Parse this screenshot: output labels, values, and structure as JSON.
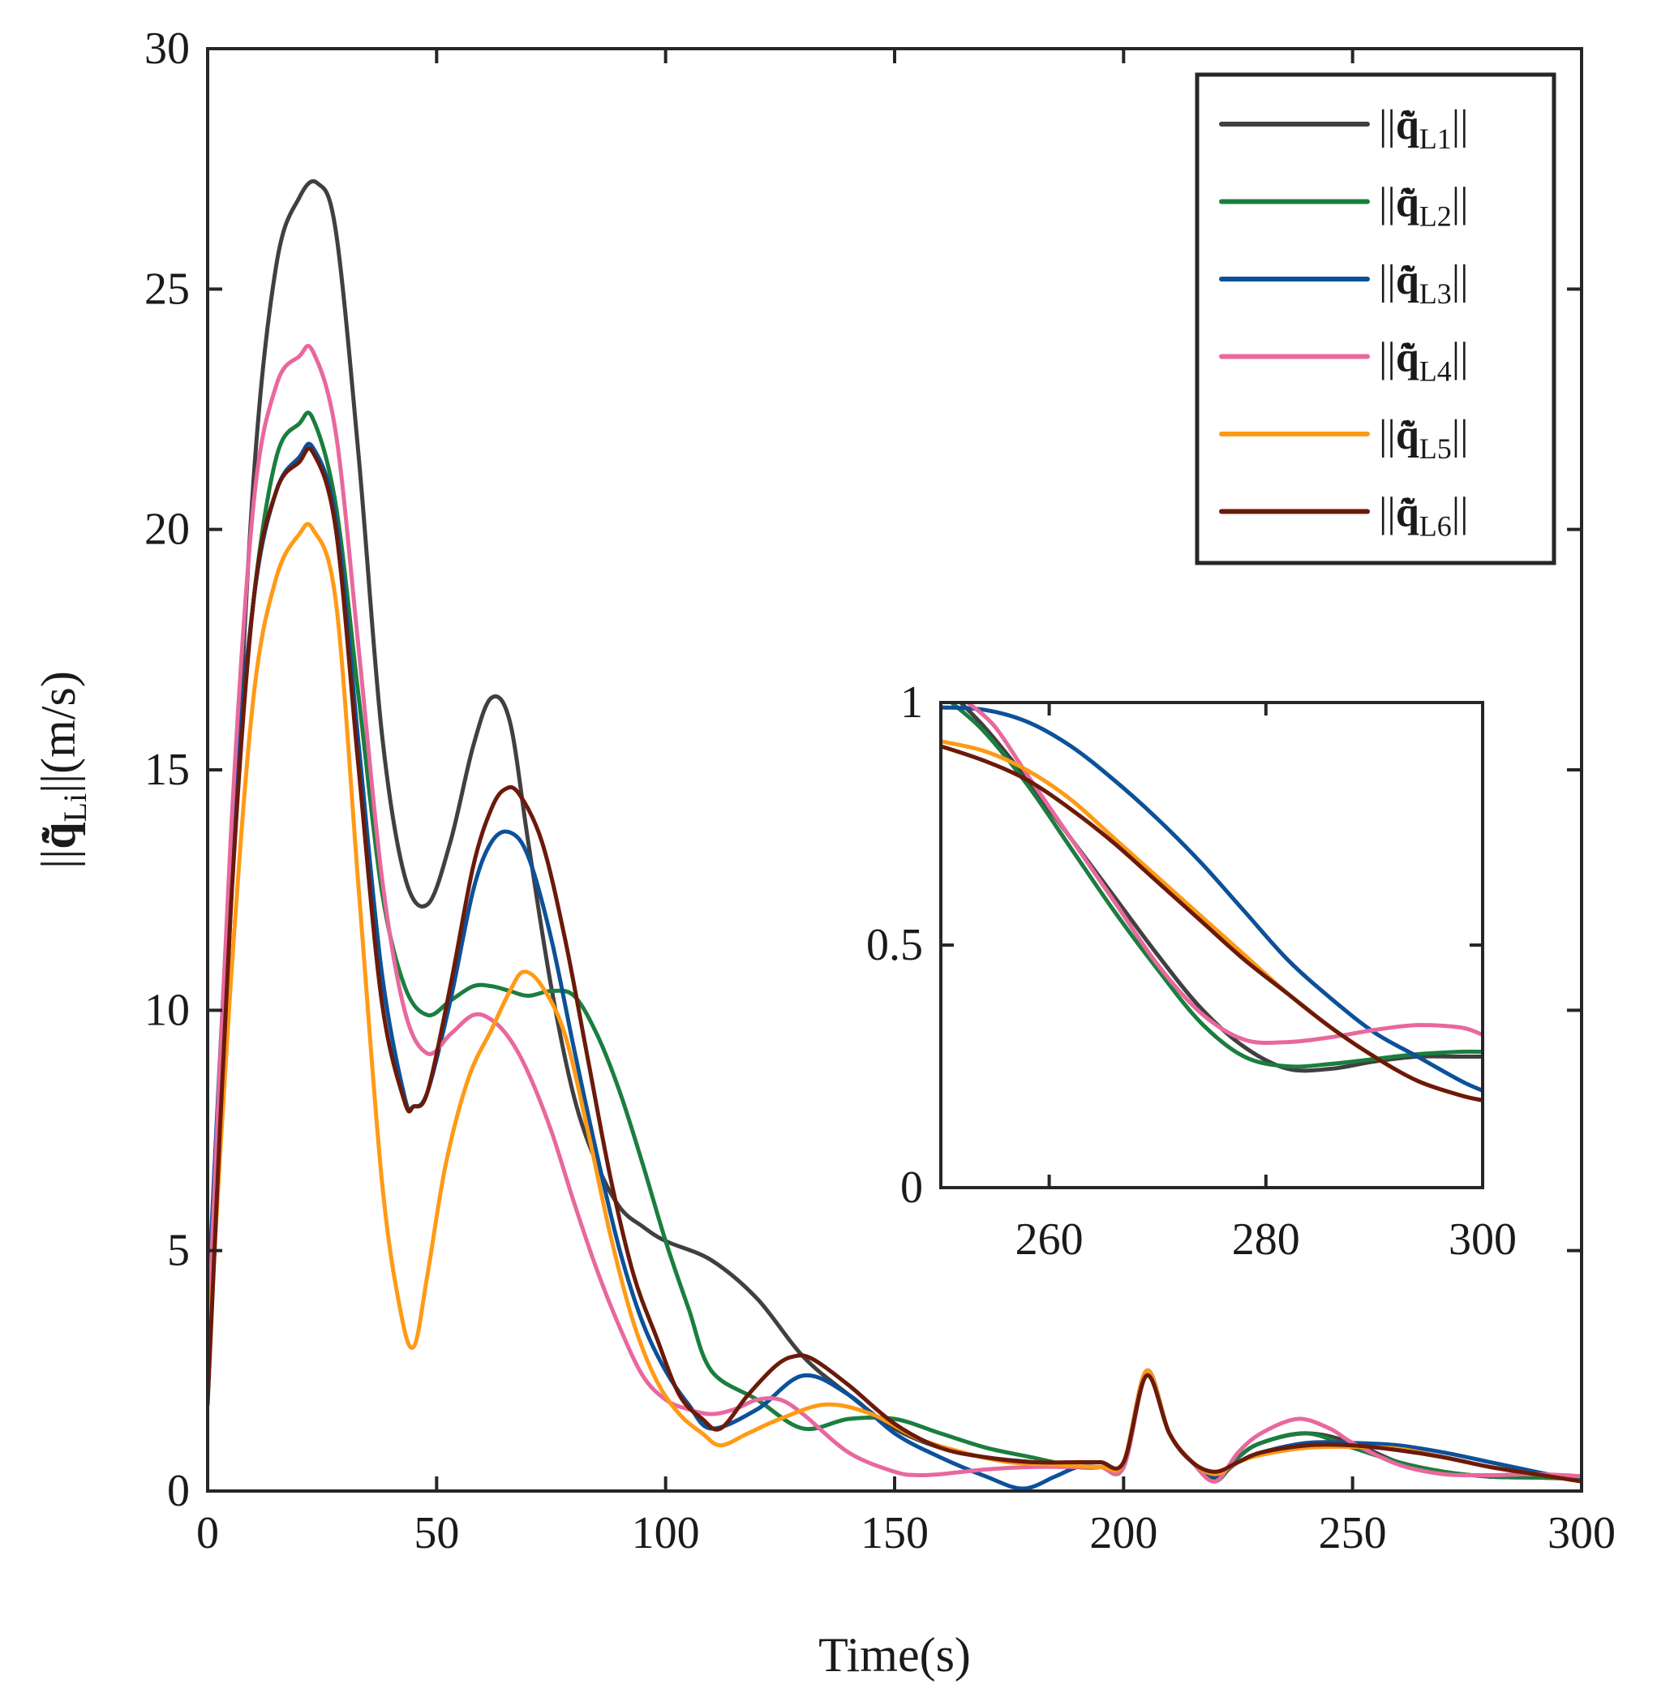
{
  "chart_data": [
    {
      "type": "line",
      "role": "main",
      "xlabel": "Time(s)",
      "ylabel": "||q̃̇_Li||(m/s)",
      "ylabel_parts": {
        "pre": "||",
        "symbol": "q̃̇",
        "sub": "Li",
        "post": "||(m/s)"
      },
      "xlim": [
        0,
        300
      ],
      "ylim": [
        0,
        30
      ],
      "xticks": [
        0,
        50,
        100,
        150,
        200,
        250,
        300
      ],
      "yticks": [
        0,
        5,
        10,
        15,
        20,
        25,
        30
      ],
      "grid": false,
      "legend_position": "top-right",
      "series": [
        {
          "name": "||q̃̇L1||",
          "label_pre": "||",
          "label_symbol": "q̃̇",
          "label_sub": "L1",
          "label_post": "||",
          "color": "#404040",
          "x": [
            0,
            5,
            10,
            15,
            20,
            24,
            28,
            33,
            38,
            43,
            48,
            53,
            58,
            62,
            66,
            70,
            75,
            80,
            85,
            90,
            95,
            100,
            110,
            120,
            130,
            140,
            150,
            160,
            170,
            180,
            190,
            195,
            200,
            205,
            210,
            215,
            220,
            225,
            230,
            240,
            250,
            260,
            270,
            280,
            290,
            300
          ],
          "y": [
            2.0,
            12.0,
            21.0,
            25.5,
            26.9,
            27.2,
            26.2,
            21.5,
            15.8,
            12.8,
            12.2,
            13.5,
            15.5,
            16.5,
            16.0,
            13.5,
            10.5,
            8.2,
            6.8,
            5.9,
            5.5,
            5.2,
            4.8,
            4.0,
            2.8,
            2.0,
            1.3,
            0.9,
            0.7,
            0.6,
            0.5,
            0.5,
            0.6,
            2.5,
            1.2,
            0.6,
            0.25,
            0.7,
            1.0,
            1.2,
            1.0,
            0.6,
            0.4,
            0.3,
            0.28,
            0.25
          ]
        },
        {
          "name": "||q̃̇L2||",
          "label_pre": "||",
          "label_symbol": "q̃̇",
          "label_sub": "L2",
          "label_post": "||",
          "color": "#1b7e3e",
          "x": [
            0,
            5,
            10,
            15,
            20,
            23,
            28,
            33,
            38,
            43,
            48,
            53,
            58,
            62,
            66,
            70,
            75,
            80,
            85,
            90,
            95,
            100,
            105,
            110,
            120,
            130,
            140,
            150,
            160,
            170,
            180,
            190,
            195,
            200,
            205,
            210,
            215,
            220,
            225,
            230,
            240,
            250,
            260,
            270,
            280,
            290,
            300
          ],
          "y": [
            3.5,
            13.0,
            18.5,
            21.5,
            22.2,
            22.3,
            20.5,
            16.5,
            12.5,
            10.5,
            9.9,
            10.2,
            10.5,
            10.5,
            10.4,
            10.3,
            10.4,
            10.3,
            9.5,
            8.3,
            6.8,
            5.2,
            3.8,
            2.5,
            1.9,
            1.3,
            1.5,
            1.5,
            1.2,
            0.9,
            0.7,
            0.5,
            0.5,
            0.5,
            2.4,
            1.2,
            0.6,
            0.2,
            0.7,
            1.0,
            1.2,
            0.9,
            0.6,
            0.4,
            0.3,
            0.28,
            0.27
          ]
        },
        {
          "name": "||q̃̇L3||",
          "label_pre": "||",
          "label_symbol": "q̃̇",
          "label_sub": "L3",
          "label_post": "||",
          "color": "#0c5199",
          "x": [
            0,
            5,
            10,
            15,
            20,
            23,
            28,
            33,
            38,
            43,
            45,
            48,
            53,
            58,
            62,
            66,
            70,
            75,
            80,
            85,
            90,
            95,
            100,
            105,
            110,
            120,
            130,
            140,
            150,
            160,
            170,
            178,
            185,
            190,
            195,
            200,
            205,
            210,
            215,
            220,
            225,
            230,
            240,
            250,
            260,
            270,
            280,
            290,
            300
          ],
          "y": [
            3.8,
            13.0,
            18.5,
            20.8,
            21.5,
            21.7,
            20.2,
            15.5,
            10.8,
            8.2,
            8.0,
            8.3,
            10.2,
            12.5,
            13.5,
            13.7,
            13.2,
            11.5,
            9.2,
            7.0,
            5.0,
            3.5,
            2.5,
            1.8,
            1.3,
            1.7,
            2.4,
            2.0,
            1.2,
            0.7,
            0.3,
            0.05,
            0.3,
            0.5,
            0.5,
            0.5,
            2.5,
            1.2,
            0.6,
            0.3,
            0.6,
            0.8,
            1.0,
            1.0,
            0.95,
            0.8,
            0.6,
            0.4,
            0.2
          ]
        },
        {
          "name": "||q̃̇L4||",
          "label_pre": "||",
          "label_symbol": "q̃̇",
          "label_sub": "L4",
          "label_post": "||",
          "color": "#e8689e",
          "x": [
            0,
            5,
            10,
            15,
            20,
            23,
            28,
            33,
            38,
            43,
            48,
            53,
            58,
            62,
            66,
            70,
            75,
            80,
            85,
            90,
            95,
            100,
            105,
            110,
            115,
            120,
            125,
            130,
            140,
            150,
            155,
            160,
            170,
            180,
            190,
            195,
            200,
            205,
            210,
            215,
            220,
            225,
            230,
            238,
            245,
            250,
            260,
            270,
            280,
            290,
            300
          ],
          "y": [
            3.0,
            13.5,
            20.5,
            23.0,
            23.6,
            23.7,
            22.0,
            17.5,
            12.8,
            10.0,
            9.1,
            9.5,
            9.9,
            9.8,
            9.4,
            8.7,
            7.5,
            6.0,
            4.6,
            3.4,
            2.4,
            1.9,
            1.7,
            1.6,
            1.7,
            1.9,
            1.9,
            1.6,
            0.8,
            0.4,
            0.33,
            0.35,
            0.45,
            0.5,
            0.5,
            0.5,
            0.5,
            2.4,
            1.2,
            0.6,
            0.2,
            0.8,
            1.2,
            1.5,
            1.3,
            1.0,
            0.55,
            0.35,
            0.33,
            0.35,
            0.31
          ]
        },
        {
          "name": "||q̃̇L5||",
          "label_pre": "||",
          "label_symbol": "q̃̇",
          "label_sub": "L5",
          "label_post": "||",
          "color": "#ff9a16",
          "x": [
            0,
            5,
            10,
            15,
            20,
            23,
            28,
            33,
            38,
            42,
            45,
            48,
            52,
            57,
            62,
            66,
            69,
            73,
            78,
            83,
            88,
            93,
            98,
            103,
            108,
            112,
            118,
            125,
            135,
            145,
            155,
            165,
            175,
            185,
            195,
            200,
            205,
            210,
            215,
            220,
            225,
            230,
            240,
            250,
            260,
            270,
            280,
            290,
            300
          ],
          "y": [
            2.5,
            10.5,
            16.5,
            19.0,
            19.9,
            20.0,
            18.5,
            12.5,
            6.5,
            3.8,
            3.0,
            4.5,
            6.8,
            8.6,
            9.6,
            10.4,
            10.8,
            10.5,
            9.5,
            7.5,
            5.3,
            3.5,
            2.3,
            1.6,
            1.2,
            0.95,
            1.2,
            1.5,
            1.8,
            1.6,
            1.1,
            0.8,
            0.6,
            0.55,
            0.5,
            0.6,
            2.5,
            1.2,
            0.6,
            0.35,
            0.6,
            0.75,
            0.9,
            0.92,
            0.88,
            0.7,
            0.5,
            0.35,
            0.2
          ]
        },
        {
          "name": "||q̃̇L6||",
          "label_pre": "||",
          "label_symbol": "q̃̇",
          "label_sub": "L6",
          "label_post": "||",
          "color": "#6b1a0a",
          "x": [
            0,
            5,
            10,
            15,
            20,
            23,
            28,
            33,
            38,
            43,
            45,
            48,
            53,
            58,
            62,
            65,
            68,
            73,
            78,
            83,
            88,
            93,
            98,
            103,
            108,
            112,
            118,
            124,
            128,
            132,
            140,
            150,
            160,
            170,
            180,
            190,
            195,
            200,
            205,
            210,
            215,
            220,
            225,
            230,
            240,
            250,
            260,
            270,
            280,
            290,
            300
          ],
          "y": [
            1.8,
            12.0,
            18.5,
            20.8,
            21.4,
            21.6,
            20.0,
            15.0,
            10.2,
            8.1,
            8.0,
            8.3,
            10.5,
            13.0,
            14.2,
            14.6,
            14.5,
            13.5,
            11.5,
            9.0,
            6.5,
            4.5,
            3.2,
            2.0,
            1.5,
            1.3,
            2.0,
            2.6,
            2.8,
            2.75,
            2.2,
            1.4,
            0.9,
            0.7,
            0.6,
            0.6,
            0.6,
            0.6,
            2.4,
            1.2,
            0.6,
            0.4,
            0.6,
            0.8,
            0.95,
            0.95,
            0.85,
            0.7,
            0.5,
            0.35,
            0.2
          ]
        }
      ]
    },
    {
      "type": "line",
      "role": "inset",
      "xlabel": "",
      "ylabel": "",
      "xlim": [
        250,
        300
      ],
      "ylim": [
        0,
        1
      ],
      "xticks": [
        260,
        280,
        300
      ],
      "yticks": [
        0,
        0.5,
        1
      ],
      "ytick_labels": [
        "0",
        "0.5",
        "1"
      ],
      "grid": false,
      "series": [
        {
          "name": "L1",
          "color": "#404040",
          "x": [
            250,
            254,
            258,
            262,
            266,
            270,
            274,
            278,
            282,
            286,
            290,
            294,
            298,
            300
          ],
          "y": [
            1.04,
            0.95,
            0.84,
            0.72,
            0.6,
            0.48,
            0.37,
            0.29,
            0.245,
            0.245,
            0.26,
            0.27,
            0.27,
            0.27
          ]
        },
        {
          "name": "L2",
          "color": "#1b7e3e",
          "x": [
            250,
            251,
            254,
            258,
            262,
            266,
            270,
            274,
            278,
            282,
            286,
            290,
            294,
            298,
            300
          ],
          "y": [
            1.02,
            1.0,
            0.94,
            0.83,
            0.7,
            0.57,
            0.45,
            0.34,
            0.27,
            0.25,
            0.255,
            0.265,
            0.275,
            0.28,
            0.28
          ]
        },
        {
          "name": "L3",
          "color": "#0c5199",
          "x": [
            250,
            254,
            258,
            262,
            266,
            270,
            274,
            278,
            282,
            286,
            290,
            294,
            298,
            300
          ],
          "y": [
            0.99,
            0.985,
            0.96,
            0.91,
            0.84,
            0.76,
            0.67,
            0.57,
            0.47,
            0.39,
            0.32,
            0.27,
            0.22,
            0.2
          ]
        },
        {
          "name": "L4",
          "color": "#e8689e",
          "x": [
            252.5,
            255,
            258,
            262,
            266,
            270,
            274,
            278,
            282,
            286,
            290,
            294,
            298,
            300
          ],
          "y": [
            1.0,
            0.95,
            0.85,
            0.72,
            0.59,
            0.46,
            0.36,
            0.305,
            0.3,
            0.31,
            0.325,
            0.335,
            0.33,
            0.315
          ]
        },
        {
          "name": "L5",
          "color": "#ff9a16",
          "x": [
            250,
            254,
            258,
            262,
            266,
            270,
            274,
            278,
            282,
            286,
            290,
            294,
            298,
            300
          ],
          "y": [
            0.92,
            0.9,
            0.86,
            0.8,
            0.72,
            0.64,
            0.56,
            0.48,
            0.4,
            0.33,
            0.27,
            0.22,
            0.19,
            0.18
          ]
        },
        {
          "name": "L6",
          "color": "#6b1a0a",
          "x": [
            250,
            254,
            258,
            262,
            266,
            270,
            274,
            278,
            282,
            286,
            290,
            294,
            298,
            300
          ],
          "y": [
            0.91,
            0.88,
            0.84,
            0.78,
            0.71,
            0.63,
            0.55,
            0.47,
            0.4,
            0.33,
            0.27,
            0.22,
            0.19,
            0.18
          ]
        }
      ]
    }
  ]
}
